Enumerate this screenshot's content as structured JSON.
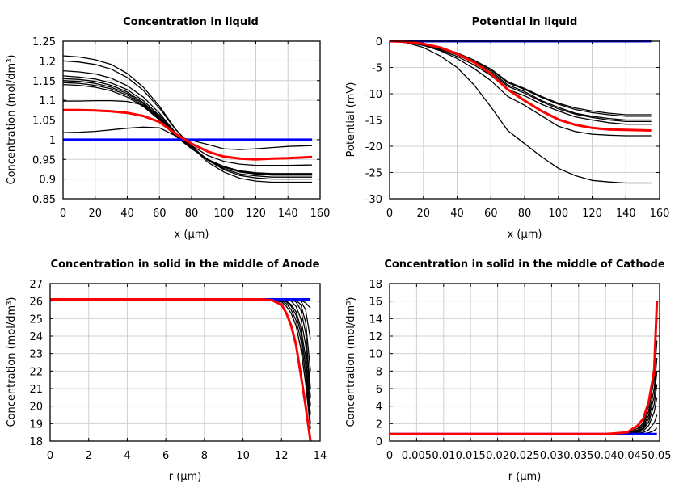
{
  "colors": {
    "initial": "#0000ff",
    "highlight": "#ff0000",
    "other": "#000000",
    "grid": "#d0d0d0"
  },
  "chart_data": [
    {
      "type": "line",
      "title": "Concentration in liquid",
      "xlabel": "x (µm)",
      "ylabel": "Concentration (mol/dm³)",
      "xlim": [
        0,
        160
      ],
      "ylim": [
        0.85,
        1.25
      ],
      "xticks": [
        "0",
        "20",
        "40",
        "60",
        "80",
        "100",
        "120",
        "140",
        "160"
      ],
      "yticks": [
        "0.85",
        "0.9",
        "0.95",
        "1",
        "1.05",
        "1.1",
        "1.15",
        "1.2",
        "1.25"
      ],
      "grid": true,
      "x": [
        0,
        10,
        20,
        30,
        40,
        50,
        60,
        70,
        80,
        90,
        100,
        110,
        120,
        130,
        140,
        155
      ],
      "series": [
        {
          "color": "other",
          "y": [
            1.213,
            1.21,
            1.203,
            1.191,
            1.168,
            1.133,
            1.085,
            1.027,
            0.982,
            0.943,
            0.918,
            0.902,
            0.895,
            0.892,
            0.892,
            0.892
          ]
        },
        {
          "color": "other",
          "y": [
            1.2,
            1.197,
            1.191,
            1.179,
            1.158,
            1.125,
            1.08,
            1.026,
            0.984,
            0.948,
            0.924,
            0.909,
            0.903,
            0.9,
            0.9,
            0.9
          ]
        },
        {
          "color": "other",
          "y": [
            1.175,
            1.172,
            1.167,
            1.156,
            1.137,
            1.108,
            1.067,
            1.018,
            0.981,
            0.948,
            0.927,
            0.913,
            0.908,
            0.905,
            0.905,
            0.905
          ]
        },
        {
          "color": "other",
          "y": [
            1.162,
            1.159,
            1.154,
            1.144,
            1.127,
            1.099,
            1.061,
            1.016,
            0.981,
            0.95,
            0.93,
            0.918,
            0.913,
            0.91,
            0.91,
            0.91
          ]
        },
        {
          "color": "other",
          "y": [
            1.155,
            1.153,
            1.148,
            1.138,
            1.121,
            1.094,
            1.057,
            1.013,
            0.979,
            0.95,
            0.931,
            0.918,
            0.913,
            0.911,
            0.911,
            0.911
          ]
        },
        {
          "color": "other",
          "y": [
            1.15,
            1.148,
            1.143,
            1.133,
            1.117,
            1.091,
            1.055,
            1.012,
            0.979,
            0.95,
            0.931,
            0.919,
            0.914,
            0.912,
            0.912,
            0.912
          ]
        },
        {
          "color": "other",
          "y": [
            1.145,
            1.143,
            1.138,
            1.129,
            1.113,
            1.087,
            1.052,
            1.01,
            0.978,
            0.95,
            0.932,
            0.92,
            0.915,
            0.913,
            0.913,
            0.913
          ]
        },
        {
          "color": "other",
          "y": [
            1.14,
            1.138,
            1.133,
            1.124,
            1.108,
            1.084,
            1.05,
            1.009,
            0.977,
            0.95,
            0.932,
            0.921,
            0.916,
            0.914,
            0.914,
            0.914
          ]
        },
        {
          "color": "other",
          "y": [
            1.098,
            1.098,
            1.099,
            1.099,
            1.097,
            1.088,
            1.062,
            1.015,
            0.985,
            0.96,
            0.945,
            0.938,
            0.935,
            0.935,
            0.935,
            0.936
          ]
        },
        {
          "color": "other",
          "y": [
            1.018,
            1.019,
            1.021,
            1.025,
            1.029,
            1.032,
            1.03,
            1.01,
            0.998,
            0.988,
            0.977,
            0.975,
            0.977,
            0.98,
            0.983,
            0.985
          ]
        },
        {
          "color": "initial",
          "y": [
            1,
            1,
            1,
            1,
            1,
            1,
            1,
            1,
            1,
            1,
            1,
            1,
            1,
            1,
            1,
            1
          ]
        },
        {
          "color": "highlight",
          "y": [
            1.075,
            1.075,
            1.074,
            1.072,
            1.068,
            1.06,
            1.045,
            1.015,
            0.99,
            0.97,
            0.957,
            0.952,
            0.95,
            0.952,
            0.953,
            0.956
          ]
        }
      ]
    },
    {
      "type": "line",
      "title": "Potential in liquid",
      "xlabel": "x (µm)",
      "ylabel": "Potential (mV)",
      "xlim": [
        0,
        160
      ],
      "ylim": [
        -30,
        0
      ],
      "xticks": [
        "0",
        "20",
        "40",
        "60",
        "80",
        "100",
        "120",
        "140",
        "160"
      ],
      "yticks": [
        "-30",
        "-25",
        "-20",
        "-15",
        "-10",
        "-5",
        "0"
      ],
      "grid": true,
      "x": [
        0,
        10,
        20,
        30,
        40,
        50,
        60,
        70,
        80,
        90,
        100,
        110,
        120,
        130,
        140,
        155
      ],
      "series": [
        {
          "color": "other",
          "y": [
            0,
            -0.1,
            -0.6,
            -1.3,
            -2.2,
            -3.6,
            -5.3,
            -7.7,
            -9,
            -10.5,
            -11.8,
            -12.7,
            -13.3,
            -13.7,
            -14,
            -14
          ]
        },
        {
          "color": "other",
          "y": [
            0,
            -0.1,
            -0.6,
            -1.3,
            -2.3,
            -3.7,
            -5.4,
            -7.9,
            -9.2,
            -10.7,
            -12,
            -13,
            -13.6,
            -14,
            -14.3,
            -14.3
          ]
        },
        {
          "color": "other",
          "y": [
            0,
            -0.2,
            -0.6,
            -1.4,
            -2.4,
            -3.9,
            -5.7,
            -8.3,
            -9.6,
            -11.3,
            -12.6,
            -13.7,
            -14.3,
            -14.7,
            -15,
            -15
          ]
        },
        {
          "color": "other",
          "y": [
            0,
            -0.2,
            -0.7,
            -1.5,
            -2.6,
            -4.1,
            -6,
            -8.6,
            -9.9,
            -11.5,
            -12.9,
            -13.9,
            -14.5,
            -15,
            -15.3,
            -15.3
          ]
        },
        {
          "color": "other",
          "y": [
            0,
            -0.2,
            -0.8,
            -1.7,
            -2.9,
            -4.5,
            -6.5,
            -9.2,
            -10.4,
            -12,
            -13.3,
            -14.4,
            -15,
            -15.5,
            -15.8,
            -15.8
          ]
        },
        {
          "color": "other",
          "y": [
            0,
            -0.2,
            -0.8,
            -1.8,
            -3.3,
            -5.2,
            -7.5,
            -10.5,
            -12.2,
            -14.2,
            -16.2,
            -17.2,
            -17.7,
            -17.9,
            -18,
            -18
          ]
        },
        {
          "color": "other",
          "y": [
            0,
            -0.3,
            -1.2,
            -2.8,
            -5,
            -8.3,
            -12.5,
            -17,
            -19.5,
            -22,
            -24.2,
            -25.6,
            -26.5,
            -26.8,
            -27,
            -27
          ]
        },
        {
          "color": "initial",
          "y": [
            0,
            0,
            0,
            0,
            0,
            0,
            0,
            0,
            0,
            0,
            0,
            0,
            0,
            0,
            0,
            0
          ]
        },
        {
          "color": "highlight",
          "y": [
            0,
            -0.1,
            -0.5,
            -1.2,
            -2.4,
            -4,
            -6.2,
            -9.2,
            -11.3,
            -13.3,
            -14.9,
            -15.9,
            -16.5,
            -16.8,
            -16.9,
            -17
          ]
        }
      ]
    },
    {
      "type": "line",
      "title": "Concentration in solid in the middle of Anode",
      "xlabel": "r (µm)",
      "ylabel": "Concentration (mol/dm³)",
      "xlim": [
        0,
        14
      ],
      "ylim": [
        18,
        27
      ],
      "xticks": [
        "0",
        "2",
        "4",
        "6",
        "8",
        "10",
        "12",
        "14"
      ],
      "yticks": [
        "18",
        "19",
        "20",
        "21",
        "22",
        "23",
        "24",
        "25",
        "26",
        "27"
      ],
      "grid": true,
      "x": [
        0,
        11,
        11.5,
        12,
        12.25,
        12.5,
        12.75,
        13,
        13.25,
        13.5
      ],
      "series": [
        {
          "color": "other",
          "y": [
            26.1,
            26.1,
            26.1,
            26.1,
            26.1,
            26.1,
            26.1,
            26.05,
            25.9,
            25.6
          ]
        },
        {
          "color": "other",
          "y": [
            26.1,
            26.1,
            26.1,
            26.1,
            26.1,
            26.1,
            26.08,
            26.0,
            25.5,
            23.8
          ]
        },
        {
          "color": "other",
          "y": [
            26.1,
            26.1,
            26.1,
            26.1,
            26.1,
            26.1,
            26.05,
            25.8,
            24.8,
            22
          ]
        },
        {
          "color": "other",
          "y": [
            26.1,
            26.1,
            26.1,
            26.1,
            26.1,
            26.08,
            25.95,
            25.5,
            24.2,
            21
          ]
        },
        {
          "color": "other",
          "y": [
            26.1,
            26.1,
            26.1,
            26.1,
            26.08,
            26.0,
            25.7,
            25.0,
            23.5,
            20.5
          ]
        },
        {
          "color": "other",
          "y": [
            26.1,
            26.1,
            26.1,
            26.08,
            26.0,
            25.8,
            25.4,
            24.5,
            22.8,
            20
          ]
        },
        {
          "color": "other",
          "y": [
            26.1,
            26.1,
            26.09,
            26.05,
            25.95,
            25.7,
            25.2,
            24.2,
            22.3,
            19.5
          ]
        },
        {
          "color": "other",
          "y": [
            26.1,
            26.1,
            26.08,
            26.0,
            25.85,
            25.5,
            24.9,
            23.8,
            21.8,
            19
          ]
        },
        {
          "color": "other",
          "y": [
            26.1,
            26.1,
            26.06,
            25.95,
            25.7,
            25.3,
            24.6,
            23.3,
            21.3,
            18.7
          ]
        },
        {
          "color": "initial",
          "y": [
            26.1,
            26.1,
            26.1,
            26.1,
            26.1,
            26.1,
            26.1,
            26.1,
            26.1,
            26.1
          ]
        },
        {
          "color": "highlight",
          "y": [
            26.1,
            26.1,
            26.05,
            25.8,
            25.3,
            24.6,
            23.5,
            21.8,
            20,
            18
          ]
        }
      ]
    },
    {
      "type": "line",
      "title": "Concentration in solid in the middle of Cathode",
      "xlabel": "r (µm)",
      "ylabel": "Concentration (mol/dm³)",
      "xlim": [
        0,
        0.05
      ],
      "ylim": [
        0,
        18
      ],
      "xticks": [
        "0",
        "0.005",
        "0.01",
        "0.015",
        "0.02",
        "0.025",
        "0.03",
        "0.035",
        "0.04",
        "0.045",
        "0.05"
      ],
      "yticks": [
        "0",
        "2",
        "4",
        "6",
        "8",
        "10",
        "12",
        "14",
        "16",
        "18"
      ],
      "grid": true,
      "x": [
        0,
        0.04,
        0.044,
        0.046,
        0.047,
        0.048,
        0.049,
        0.0495
      ],
      "series": [
        {
          "color": "other",
          "y": [
            0.8,
            0.8,
            0.9,
            1.5,
            2.1,
            4.1,
            8.7,
            14
          ]
        },
        {
          "color": "other",
          "y": [
            0.8,
            0.8,
            0.9,
            1.3,
            1.9,
            3.5,
            7.2,
            11.5
          ]
        },
        {
          "color": "other",
          "y": [
            0.8,
            0.8,
            0.9,
            1.2,
            1.7,
            3,
            6,
            9.5
          ]
        },
        {
          "color": "other",
          "y": [
            0.8,
            0.8,
            0.85,
            1.1,
            1.5,
            2.6,
            5.1,
            8
          ]
        },
        {
          "color": "other",
          "y": [
            0.8,
            0.8,
            0.85,
            1.05,
            1.4,
            2.2,
            4.2,
            6.5
          ]
        },
        {
          "color": "other",
          "y": [
            0.8,
            0.8,
            0.82,
            1,
            1.2,
            1.8,
            3.3,
            5
          ]
        },
        {
          "color": "other",
          "y": [
            0.8,
            0.8,
            0.8,
            0.9,
            1,
            1.3,
            2.1,
            3
          ]
        },
        {
          "color": "other",
          "y": [
            0.8,
            0.8,
            0.8,
            0.82,
            0.85,
            0.95,
            1.2,
            1.5
          ]
        },
        {
          "color": "initial",
          "y": [
            0.8,
            0.8,
            0.8,
            0.8,
            0.8,
            0.8,
            0.8,
            0.8
          ]
        },
        {
          "color": "highlight",
          "y": [
            0.8,
            0.8,
            1.0,
            1.8,
            2.6,
            4.5,
            8,
            16
          ]
        }
      ]
    }
  ]
}
